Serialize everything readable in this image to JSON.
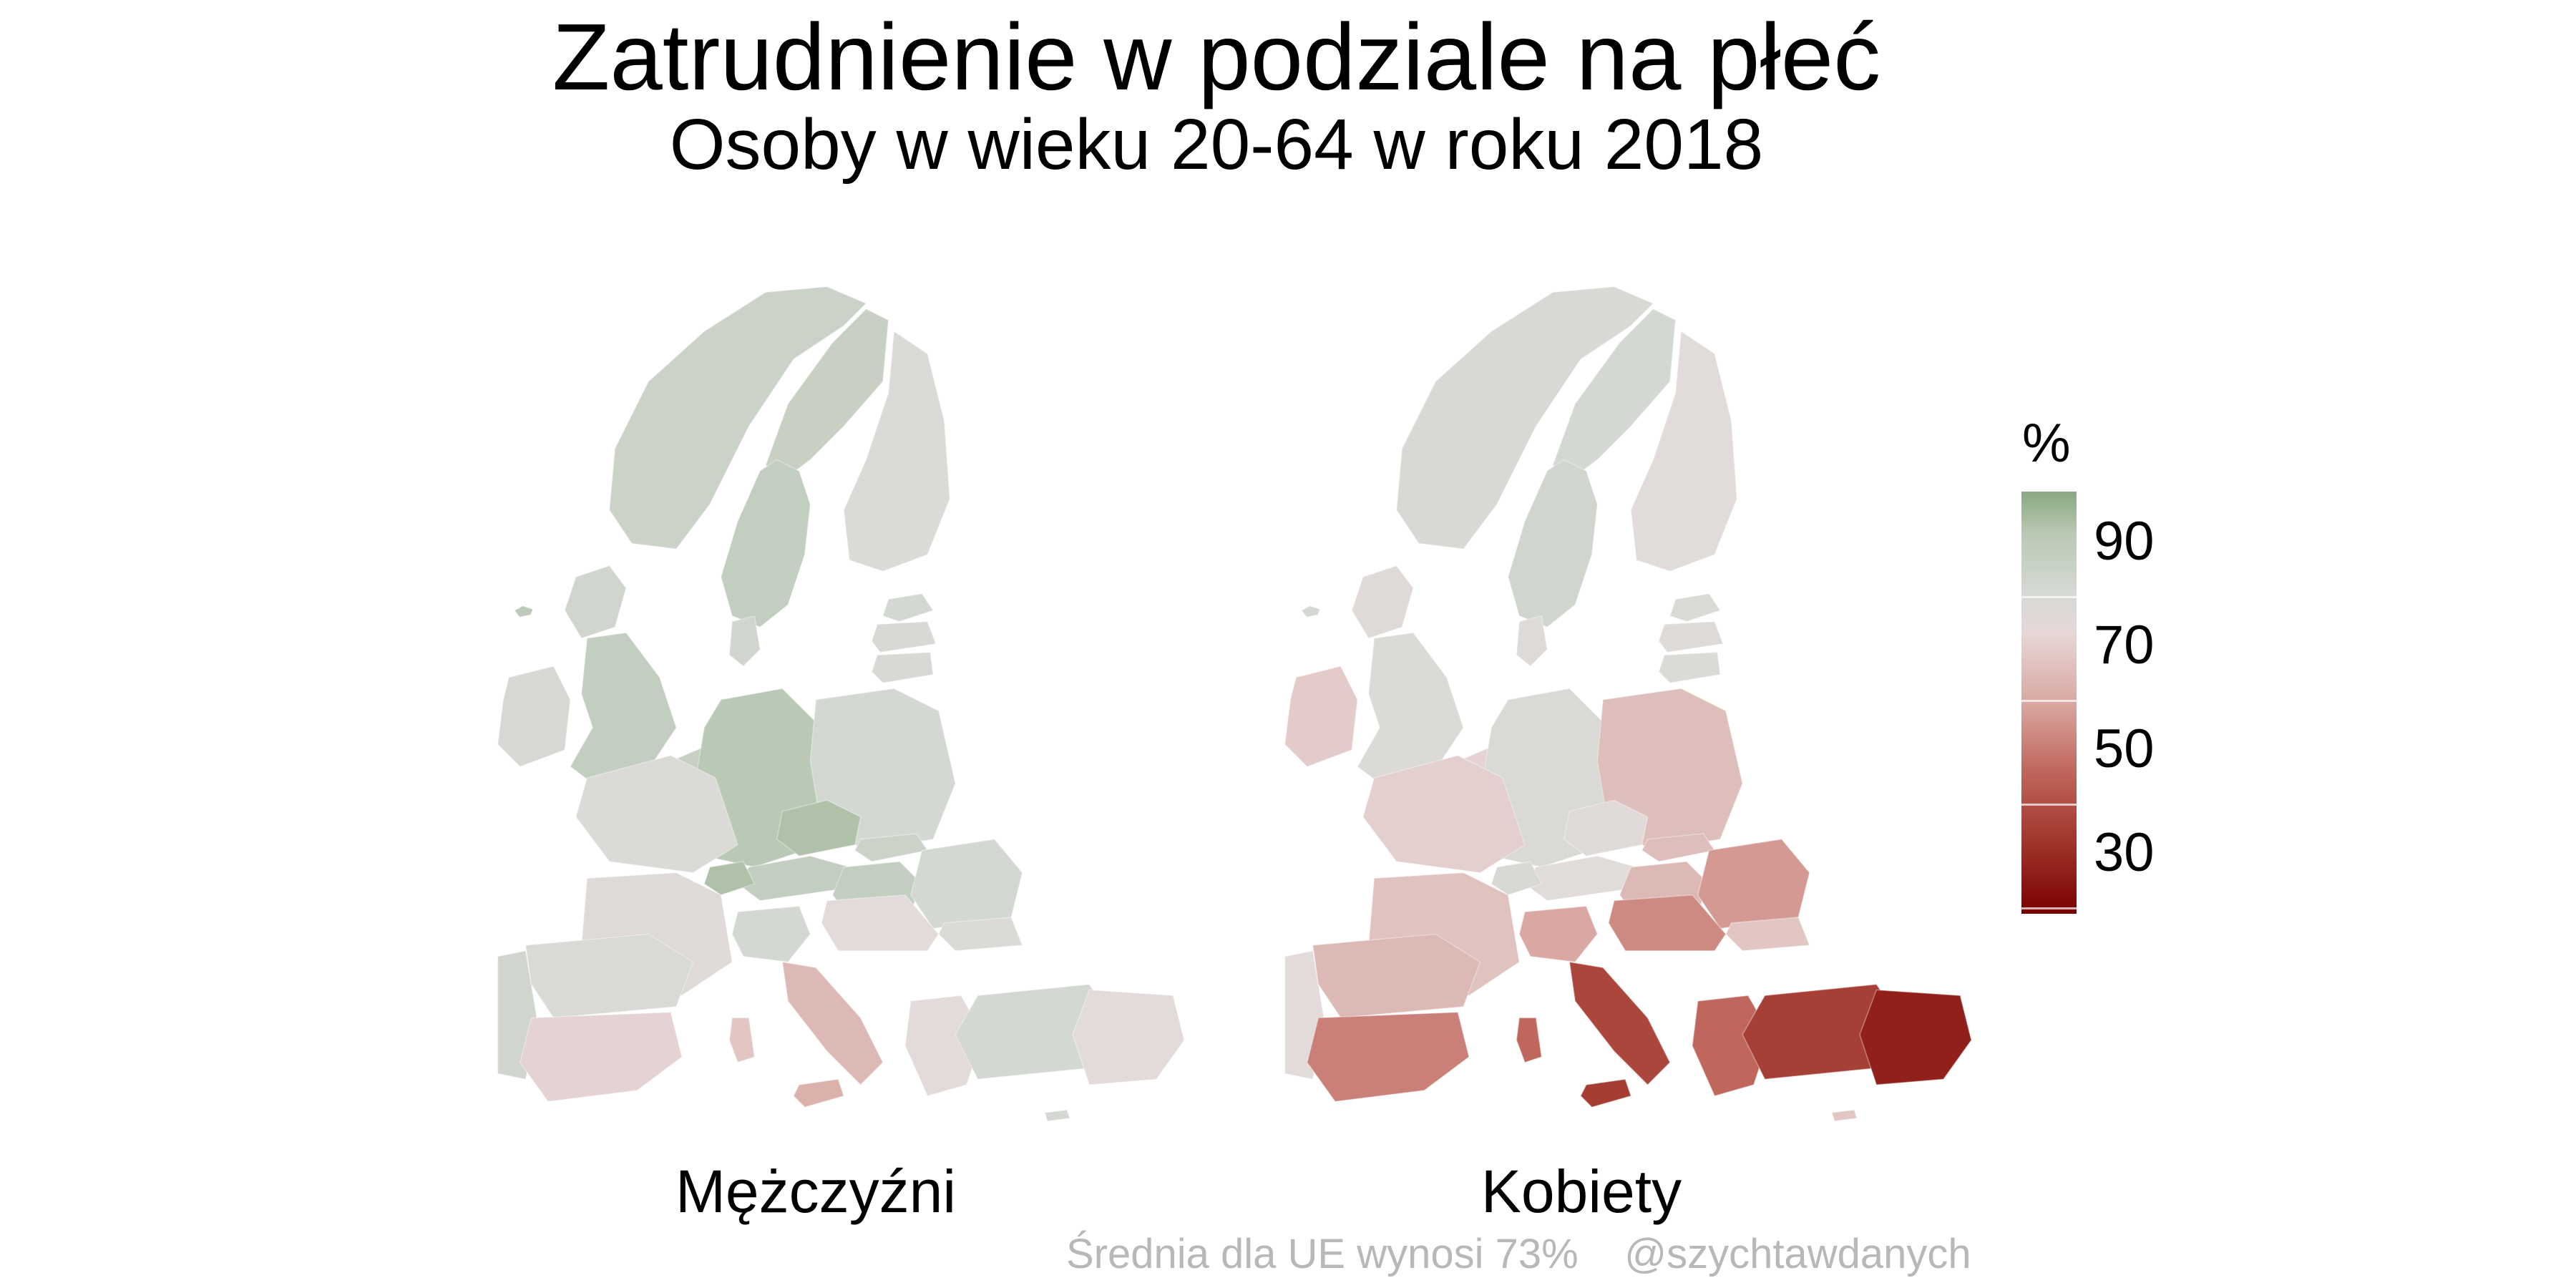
{
  "title": "Zatrudnienie w podziale na płeć",
  "subtitle": "Osoby w wieku 20-64 w roku 2018",
  "panels": [
    {
      "label": "Mężczyźni"
    },
    {
      "label": "Kobiety"
    }
  ],
  "legend": {
    "title": "%",
    "ticks": [
      "90",
      "70",
      "50",
      "30"
    ],
    "scale_min": 15,
    "scale_max": 94,
    "colors": {
      "high": "#8aa882",
      "mid": "#e6dcdc",
      "low": "#7a0000"
    }
  },
  "caption": {
    "note": "Średnia dla UE wynosi 73%",
    "author": "@szychtawdanych"
  },
  "map_data": {
    "men": {
      "iceland": 85,
      "norway": 82,
      "sweden_north": 83,
      "sweden_south": 84,
      "finland": 76,
      "estonia": 80,
      "latvia": 78,
      "lithuania": 78,
      "denmark": 81,
      "uk_scotland": 81,
      "uk_england": 84,
      "ireland": 79,
      "benelux": 83,
      "germany": 86,
      "poland": 80,
      "czechia": 88,
      "austria": 84,
      "switzerland": 88,
      "france_north": 76,
      "france_south": 74,
      "hungary": 84,
      "slovakia": 82,
      "romania": 80,
      "bulgaria": 76,
      "balkans": 72,
      "portugal": 81,
      "spain_north": 77,
      "spain_south": 68,
      "italy_north": 80,
      "italy_south": 62,
      "sardinia": 65,
      "sicily": 60,
      "greece": 72,
      "cyprus": 80,
      "turkey": 80,
      "turkey_east": 72
    },
    "women": {
      "iceland": 80,
      "norway": 78,
      "sweden_north": 80,
      "sweden_south": 81,
      "finland": 73,
      "estonia": 76,
      "latvia": 75,
      "lithuania": 76,
      "denmark": 75,
      "uk_scotland": 74,
      "uk_england": 76,
      "ireland": 66,
      "benelux": 68,
      "germany": 77,
      "poland": 63,
      "czechia": 74,
      "austria": 73,
      "switzerland": 78,
      "france_north": 67,
      "france_south": 64,
      "hungary": 62,
      "slovakia": 63,
      "romania": 55,
      "bulgaria": 65,
      "balkans": 52,
      "portugal": 72,
      "spain_north": 62,
      "spain_south": 50,
      "italy_north": 58,
      "italy_south": 35,
      "sardinia": 45,
      "sicily": 32,
      "greece": 45,
      "cyprus": 65,
      "turkey": 33,
      "turkey_east": 24
    }
  }
}
